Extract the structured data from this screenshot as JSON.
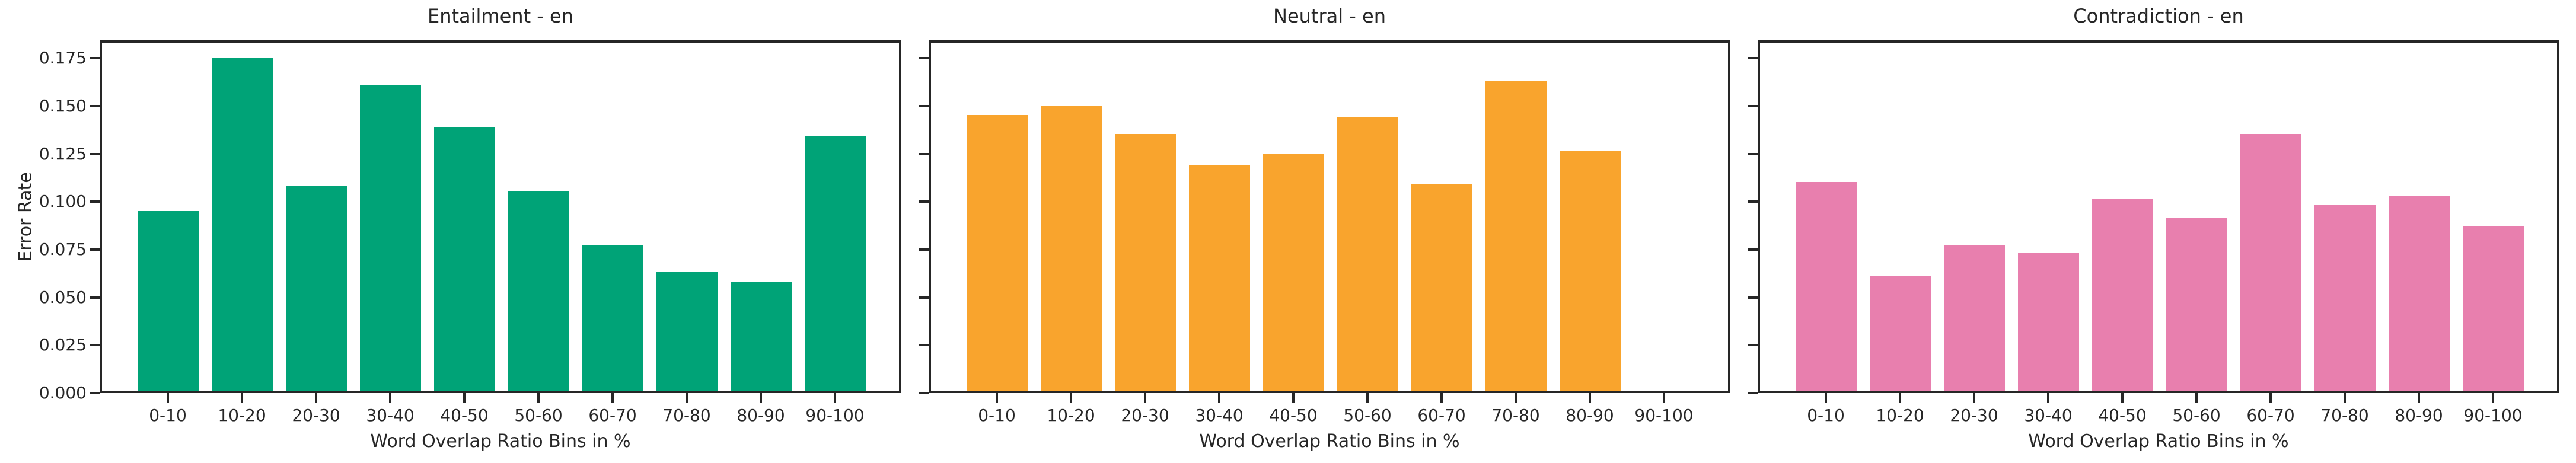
{
  "figure": {
    "background": "#ffffff",
    "spine_color": "#262626",
    "text_color": "#262626"
  },
  "chart_data": [
    {
      "type": "bar",
      "title": "Entailment - en",
      "xlabel": "Word Overlap Ratio Bins in %",
      "ylabel": "Error Rate",
      "color": "#00a377",
      "categories": [
        "0-10",
        "10-20",
        "20-30",
        "30-40",
        "40-50",
        "50-60",
        "60-70",
        "70-80",
        "80-90",
        "90-100"
      ],
      "values": [
        0.094,
        0.174,
        0.107,
        0.16,
        0.138,
        0.104,
        0.076,
        0.062,
        0.057,
        0.133
      ],
      "ylim": [
        0,
        0.184
      ],
      "ytick_labels": [
        "0.000",
        "0.025",
        "0.050",
        "0.075",
        "0.100",
        "0.125",
        "0.150",
        "0.175"
      ],
      "grid": false,
      "legend": null
    },
    {
      "type": "bar",
      "title": "Neutral - en",
      "xlabel": "Word Overlap Ratio Bins in %",
      "ylabel": "",
      "color": "#f9a42d",
      "categories": [
        "0-10",
        "10-20",
        "20-30",
        "30-40",
        "40-50",
        "50-60",
        "60-70",
        "70-80",
        "80-90",
        "90-100"
      ],
      "values": [
        0.144,
        0.149,
        0.134,
        0.118,
        0.124,
        0.143,
        0.108,
        0.162,
        0.125,
        0.0
      ],
      "ylim": [
        0,
        0.184
      ],
      "ytick_labels": [
        "0.000",
        "0.025",
        "0.050",
        "0.075",
        "0.100",
        "0.125",
        "0.150",
        "0.175"
      ],
      "grid": false,
      "legend": null
    },
    {
      "type": "bar",
      "title": "Contradiction - en",
      "xlabel": "Word Overlap Ratio Bins in %",
      "ylabel": "",
      "color": "#e87fae",
      "categories": [
        "0-10",
        "10-20",
        "20-30",
        "30-40",
        "40-50",
        "50-60",
        "60-70",
        "70-80",
        "80-90",
        "90-100"
      ],
      "values": [
        0.109,
        0.06,
        0.076,
        0.072,
        0.1,
        0.09,
        0.134,
        0.097,
        0.102,
        0.086
      ],
      "ylim": [
        0,
        0.184
      ],
      "ytick_labels": [
        "0.000",
        "0.025",
        "0.050",
        "0.075",
        "0.100",
        "0.125",
        "0.150",
        "0.175"
      ],
      "grid": false,
      "legend": null
    }
  ]
}
